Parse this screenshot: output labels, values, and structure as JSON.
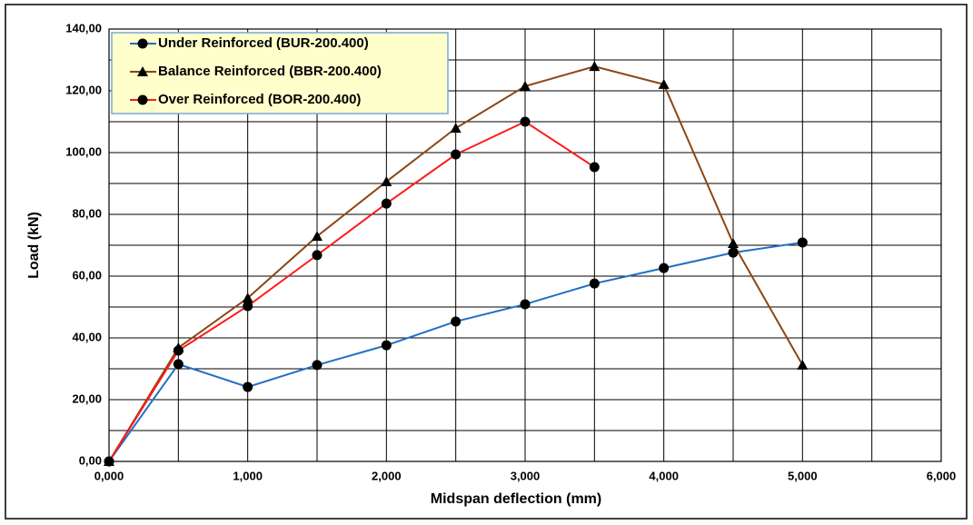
{
  "chart_data": {
    "type": "line",
    "xlabel": "Midspan  deflection (mm)",
    "ylabel": "Load (kN)",
    "x": [
      0,
      0.5,
      1.0,
      1.5,
      2.0,
      2.5,
      3.0,
      3.5,
      4.0,
      4.5,
      5.0
    ],
    "series": [
      {
        "name": "Under Reinforced (BUR-200.400)",
        "color": "#1f6fc5",
        "marker": "circle",
        "values": [
          0,
          31.5,
          24.1,
          31.2,
          37.6,
          45.3,
          50.9,
          57.6,
          62.6,
          67.6,
          70.9
        ]
      },
      {
        "name": "Balance Reinforced (BBR-200.400)",
        "color": "#8b4513",
        "marker": "triangle",
        "values": [
          0,
          36.8,
          52.9,
          72.9,
          90.6,
          107.9,
          121.5,
          127.9,
          122.1,
          70.6,
          31.2
        ]
      },
      {
        "name": "Over Reinforced (BOR-200.400)",
        "color": "#ff1a1a",
        "marker": "circle",
        "values": [
          0,
          35.9,
          50.3,
          66.8,
          83.5,
          99.4,
          110.0,
          95.3,
          null,
          null,
          null
        ]
      }
    ],
    "xlim": [
      0,
      6
    ],
    "ylim": [
      0,
      140
    ],
    "xticks": [
      {
        "value": 0,
        "label": "0,000"
      },
      {
        "value": 1,
        "label": "1,000"
      },
      {
        "value": 2,
        "label": "2,000"
      },
      {
        "value": 3,
        "label": "3,000"
      },
      {
        "value": 4,
        "label": "4,000"
      },
      {
        "value": 5,
        "label": "5,000"
      },
      {
        "value": 6,
        "label": "6,000"
      }
    ],
    "yticks": [
      {
        "value": 0,
        "label": "0,00"
      },
      {
        "value": 20,
        "label": "20,00"
      },
      {
        "value": 40,
        "label": "40,00"
      },
      {
        "value": 60,
        "label": "60,00"
      },
      {
        "value": 80,
        "label": "80,00"
      },
      {
        "value": 100,
        "label": "100,00"
      },
      {
        "value": 120,
        "label": "120,00"
      },
      {
        "value": 140,
        "label": "140,00"
      }
    ],
    "grid": true,
    "legend": "upper left"
  }
}
